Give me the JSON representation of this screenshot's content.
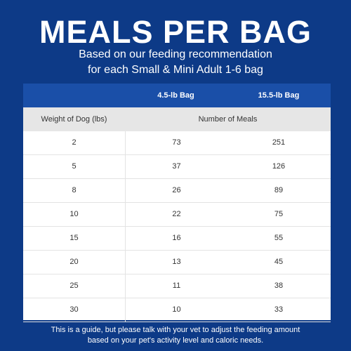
{
  "header": {
    "title": "MEALS PER BAG",
    "subtitle_line1": "Based on our feeding recommendation",
    "subtitle_line2": "for each Small & Mini Adult 1-6 bag"
  },
  "table": {
    "bag_headers": [
      "4.5-lb Bag",
      "15.5-lb Bag"
    ],
    "weight_header": "Weight of Dog (lbs)",
    "meals_header": "Number of Meals",
    "rows": [
      [
        "2",
        "73",
        "251"
      ],
      [
        "5",
        "37",
        "126"
      ],
      [
        "8",
        "26",
        "89"
      ],
      [
        "10",
        "22",
        "75"
      ],
      [
        "15",
        "16",
        "55"
      ],
      [
        "20",
        "13",
        "45"
      ],
      [
        "25",
        "11",
        "38"
      ],
      [
        "30",
        "10",
        "33"
      ]
    ]
  },
  "footnote": {
    "line1": "This is a guide, but please talk with your vet to adjust the feeding amount",
    "line2": "based on your pet's activity level and caloric needs."
  }
}
